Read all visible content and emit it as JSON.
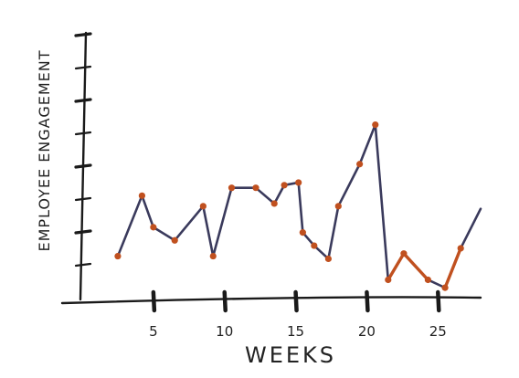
{
  "chart_data": {
    "type": "line",
    "title": "",
    "xlabel": "WEEKS",
    "ylabel": "EMPLOYEE ENGAGEMENT",
    "xlim": [
      0,
      28
    ],
    "ylim": [
      0,
      10
    ],
    "xticks": [
      5,
      10,
      15,
      20,
      25
    ],
    "xtick_labels": [
      "5",
      "10",
      "15",
      "20",
      "25"
    ],
    "grid": false,
    "legend": "none",
    "colors": {
      "line": "#3a3a5c",
      "marker": "#c0501f",
      "highlight": "#c0501f",
      "axis": "#1a1a1a"
    },
    "series": [
      {
        "x": [
          2.5,
          4.2,
          5,
          6.5,
          8.5,
          9.2,
          10.5,
          12.2,
          13.5,
          14.2,
          15.2,
          15.5,
          16.3,
          17.3,
          18,
          19.5,
          20.6,
          21.5,
          22.6,
          24.3,
          25.5,
          26.6,
          28
        ],
        "y": [
          1.3,
          3.6,
          2.4,
          1.9,
          3.2,
          1.3,
          3.9,
          3.9,
          3.3,
          4.0,
          4.1,
          2.2,
          1.7,
          1.2,
          3.2,
          4.8,
          6.3,
          0.4,
          1.4,
          0.4,
          0.1,
          1.6,
          3.1
        ]
      }
    ],
    "highlight_segments": [
      [
        17,
        18
      ],
      [
        18,
        19
      ],
      [
        20,
        21
      ]
    ]
  }
}
